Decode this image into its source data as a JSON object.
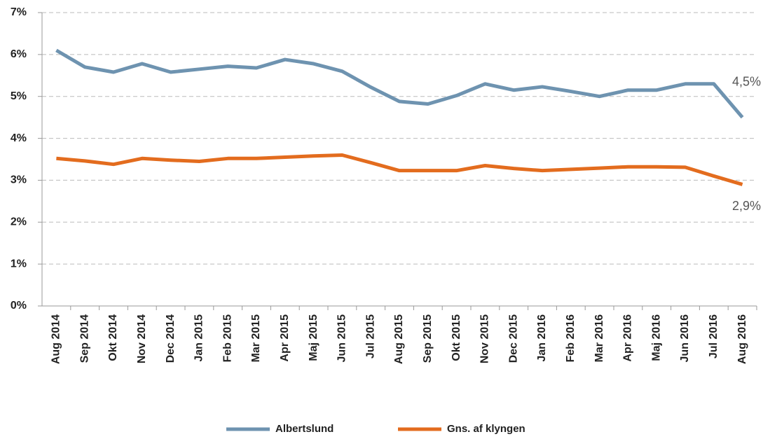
{
  "chart_data": {
    "type": "line",
    "categories": [
      "Aug 2014",
      "Sep 2014",
      "Okt 2014",
      "Nov 2014",
      "Dec 2014",
      "Jan 2015",
      "Feb 2015",
      "Mar 2015",
      "Apr 2015",
      "Maj 2015",
      "Jun 2015",
      "Jul 2015",
      "Aug 2015",
      "Sep 2015",
      "Okt 2015",
      "Nov 2015",
      "Dec 2015",
      "Jan 2016",
      "Feb 2016",
      "Mar 2016",
      "Apr 2016",
      "Maj 2016",
      "Jun 2016",
      "Jul 2016",
      "Aug 2016"
    ],
    "series": [
      {
        "name": "Albertslund",
        "color": "#6e93b0",
        "values": [
          6.1,
          5.7,
          5.58,
          5.78,
          5.58,
          5.65,
          5.72,
          5.68,
          5.88,
          5.78,
          5.6,
          5.22,
          4.88,
          4.82,
          5.02,
          5.3,
          5.15,
          5.23,
          5.12,
          5.0,
          5.15,
          5.15,
          5.3,
          5.3,
          4.5
        ],
        "value_labels": [
          null,
          null,
          null,
          null,
          null,
          null,
          null,
          null,
          null,
          null,
          null,
          null,
          null,
          null,
          null,
          null,
          null,
          null,
          null,
          null,
          null,
          null,
          null,
          null,
          "4,5%"
        ]
      },
      {
        "name": "Gns. af klyngen",
        "color": "#e36c1e",
        "values": [
          3.52,
          3.46,
          3.38,
          3.52,
          3.48,
          3.45,
          3.52,
          3.52,
          3.55,
          3.58,
          3.6,
          3.42,
          3.23,
          3.23,
          3.23,
          3.35,
          3.28,
          3.23,
          3.26,
          3.29,
          3.32,
          3.32,
          3.31,
          3.1,
          2.9
        ],
        "value_labels": [
          null,
          null,
          null,
          null,
          null,
          null,
          null,
          null,
          null,
          null,
          null,
          null,
          null,
          null,
          null,
          null,
          null,
          null,
          null,
          null,
          null,
          null,
          null,
          null,
          "2,9%"
        ]
      }
    ],
    "ylim": [
      0,
      7
    ],
    "yticks": [
      {
        "value": 0,
        "label": "0%"
      },
      {
        "value": 1,
        "label": "1%"
      },
      {
        "value": 2,
        "label": "2%"
      },
      {
        "value": 3,
        "label": "3%"
      },
      {
        "value": 4,
        "label": "4%"
      },
      {
        "value": 5,
        "label": "5%"
      },
      {
        "value": 6,
        "label": "6%"
      },
      {
        "value": 7,
        "label": "7%"
      }
    ],
    "grid": true,
    "legend": "bottom"
  }
}
